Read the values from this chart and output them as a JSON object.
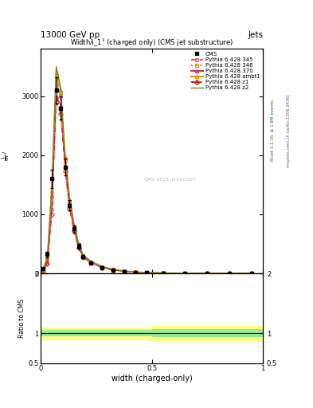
{
  "title_top_left": "13000 GeV pp",
  "title_top_right": "Jets",
  "plot_title": "Widthλ_1¹ (charged only) (CMS jet substructure)",
  "xlabel": "width (charged-only)",
  "ylabel_ratio": "Ratio to CMS",
  "watermark": "CMS_2021_I1920187",
  "rivet_label": "Rivet 3.1.10, ≥ 1.8M events",
  "mcplots_label": "mcplots.cern.ch [arXiv:1306.3436]",
  "line_colors": {
    "345": "#e06060",
    "346": "#c8a020",
    "370": "#cc3060",
    "ambt1": "#e09000",
    "z1": "#cc2020",
    "z2": "#808020"
  },
  "x_bins": [
    0.0,
    0.02,
    0.04,
    0.06,
    0.08,
    0.1,
    0.12,
    0.14,
    0.16,
    0.18,
    0.2,
    0.25,
    0.3,
    0.35,
    0.4,
    0.45,
    0.5,
    0.6,
    0.7,
    0.8,
    0.9,
    1.0
  ],
  "cms_y": [
    80,
    320,
    1600,
    3100,
    2800,
    1800,
    1150,
    750,
    460,
    280,
    180,
    100,
    58,
    34,
    20,
    11,
    6,
    2.5,
    1.0,
    0.4,
    0.1
  ],
  "cms_yerr": [
    15,
    50,
    150,
    220,
    200,
    140,
    90,
    60,
    38,
    25,
    16,
    9,
    6,
    4,
    2.5,
    1.5,
    1.0,
    0.5,
    0.25,
    0.1,
    0.05
  ],
  "py345_y": [
    40,
    200,
    1200,
    3200,
    3000,
    1900,
    1200,
    780,
    480,
    295,
    190,
    108,
    62,
    37,
    22,
    12,
    7,
    3,
    1.2,
    0.5,
    0.15
  ],
  "py346_y": [
    50,
    230,
    1300,
    3300,
    3050,
    1930,
    1220,
    795,
    490,
    300,
    194,
    110,
    64,
    38,
    23,
    13,
    7.5,
    3.2,
    1.3,
    0.55,
    0.17
  ],
  "py370_y": [
    35,
    180,
    1100,
    3000,
    2850,
    1820,
    1150,
    748,
    460,
    280,
    182,
    103,
    59,
    35,
    21,
    11.5,
    6.5,
    2.8,
    1.1,
    0.45,
    0.13
  ],
  "pyambt1_y": [
    55,
    260,
    1400,
    3400,
    3100,
    1970,
    1250,
    815,
    503,
    310,
    200,
    115,
    67,
    40,
    24,
    13.5,
    7.8,
    3.3,
    1.35,
    0.57,
    0.18
  ],
  "pyz1_y": [
    30,
    160,
    1000,
    2900,
    2700,
    1730,
    1090,
    710,
    436,
    265,
    172,
    97,
    56,
    33,
    19.5,
    10.5,
    6,
    2.5,
    1.0,
    0.4,
    0.12
  ],
  "pyz2_y": [
    60,
    280,
    1500,
    3500,
    3150,
    2010,
    1280,
    836,
    516,
    318,
    206,
    118,
    69,
    41,
    25,
    14,
    8,
    3.5,
    1.4,
    0.6,
    0.19
  ],
  "ylim_main": [
    0,
    3800
  ],
  "ylim_ratio": [
    0.5,
    2.0
  ],
  "background_color": "#ffffff",
  "green_band_color": "#90ee90",
  "yellow_band_color": "#ffff80"
}
